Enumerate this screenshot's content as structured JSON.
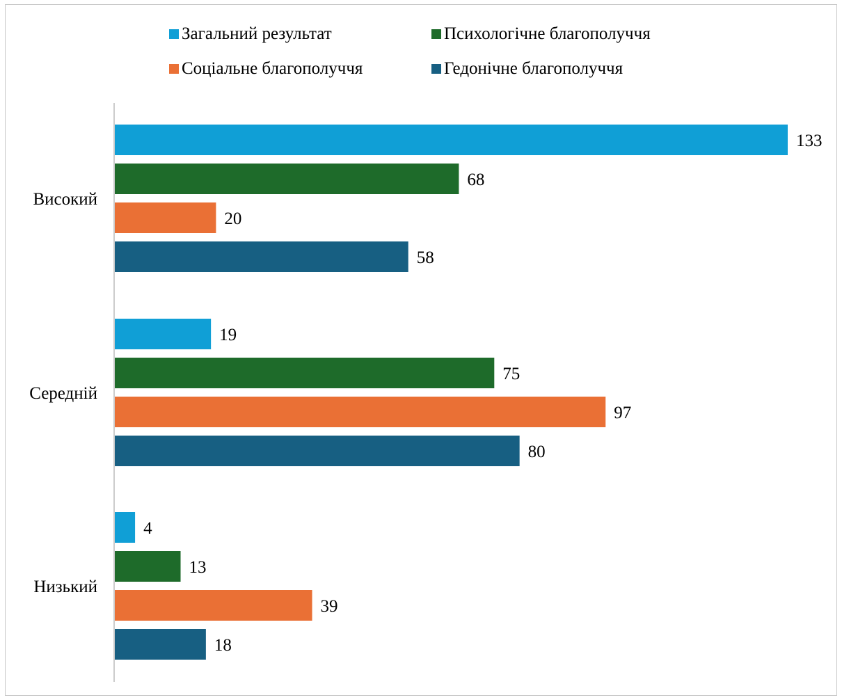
{
  "chart_data": {
    "type": "bar",
    "orientation": "horizontal",
    "categories": [
      "Високий",
      "Середній",
      "Низький"
    ],
    "series": [
      {
        "name": "Загальний результат",
        "color": "#109fd6",
        "values": [
          133,
          19,
          4
        ]
      },
      {
        "name": "Психологічне благополуччя",
        "color": "#1e6b2a",
        "values": [
          68,
          75,
          13
        ]
      },
      {
        "name": "Соціальне благополуччя",
        "color": "#ea7035",
        "values": [
          20,
          97,
          39
        ]
      },
      {
        "name": "Гедонічне благополуччя",
        "color": "#175f82",
        "values": [
          58,
          80,
          18
        ]
      }
    ],
    "data_labels": true,
    "value_axis_visible": false,
    "grid": false,
    "legend_position": "top",
    "xlim": [
      0,
      133
    ]
  }
}
